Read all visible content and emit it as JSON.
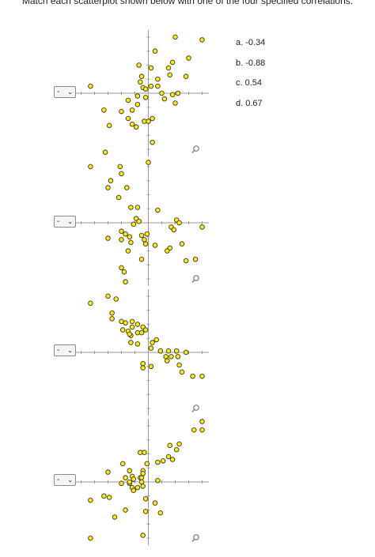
{
  "instruction": "Match each scatterplot shown below with one of the four specified correlations.",
  "selects": [
    {
      "value": "-"
    },
    {
      "value": "-"
    },
    {
      "value": "-"
    },
    {
      "value": "-"
    }
  ],
  "options": [
    "a. -0.34",
    "b. -0.88",
    "c. 0.54",
    "d. 0.67"
  ],
  "icons": {
    "dropdown": "chevron-down-icon",
    "zoom": "magnifier-icon"
  },
  "colors": {
    "point_fill": "#ffee00",
    "point_stroke": "#333333",
    "axis": "#999999"
  },
  "chart_data": [
    {
      "type": "scatter",
      "title": "",
      "xlim": [
        -5.5,
        4.5
      ],
      "ylim": [
        -4.5,
        4.5
      ],
      "grid": false,
      "points": [
        [
          2,
          4
        ],
        [
          4,
          3.8
        ],
        [
          0.5,
          3
        ],
        [
          3,
          2.5
        ],
        [
          1.8,
          2.2
        ],
        [
          -0.7,
          2
        ],
        [
          0.2,
          1.8
        ],
        [
          1.5,
          1.8
        ],
        [
          -0.5,
          1.2
        ],
        [
          -0.6,
          0.8
        ],
        [
          1.6,
          1.3
        ],
        [
          0.7,
          1
        ],
        [
          2.8,
          1.2
        ],
        [
          -0.4,
          0.4
        ],
        [
          -0.2,
          0.3
        ],
        [
          0.2,
          0.5
        ],
        [
          0.7,
          0.5
        ],
        [
          -4.3,
          0.5
        ],
        [
          2.2,
          0
        ],
        [
          1.8,
          -0.1
        ],
        [
          1,
          0
        ],
        [
          1.2,
          -0.4
        ],
        [
          -0.8,
          -0.2
        ],
        [
          -0.2,
          -0.3
        ],
        [
          2,
          -0.7
        ],
        [
          -1.5,
          -0.5
        ],
        [
          -0.8,
          -0.8
        ],
        [
          -3.3,
          -1.2
        ],
        [
          -1.2,
          -1.2
        ],
        [
          -2,
          -1.3
        ],
        [
          -1.5,
          -1.8
        ],
        [
          -0.3,
          -2
        ],
        [
          0,
          -2
        ],
        [
          0.3,
          -1.8
        ],
        [
          -2.9,
          -2.3
        ],
        [
          -1.2,
          -2.2
        ],
        [
          -0.9,
          -2.4
        ],
        [
          0.3,
          -3.5
        ],
        [
          -3.2,
          -4.2
        ]
      ]
    },
    {
      "type": "scatter",
      "title": "",
      "xlim": [
        -5.5,
        4.5
      ],
      "ylim": [
        -4.5,
        4.5
      ],
      "grid": false,
      "points": [
        [
          -4.3,
          4
        ],
        [
          -2.1,
          4
        ],
        [
          -2,
          3.5
        ],
        [
          -2.8,
          3
        ],
        [
          -3,
          2.5
        ],
        [
          -1.6,
          2.5
        ],
        [
          0,
          4.3
        ],
        [
          -2.2,
          1.8
        ],
        [
          -1.3,
          1.1
        ],
        [
          -0.8,
          1.1
        ],
        [
          0.7,
          0.9
        ],
        [
          -0.9,
          0.3
        ],
        [
          -0.7,
          0.1
        ],
        [
          -1.1,
          -0.1
        ],
        [
          2.1,
          0.2
        ],
        [
          2.3,
          0
        ],
        [
          1.7,
          -0.3
        ],
        [
          1.9,
          -0.5
        ],
        [
          4,
          -0.3
        ],
        [
          -2,
          -0.6
        ],
        [
          -1.7,
          -0.8
        ],
        [
          -1.4,
          -1
        ],
        [
          -0.5,
          -0.9
        ],
        [
          -0.1,
          -0.8
        ],
        [
          -0.3,
          -1.2
        ],
        [
          -0.2,
          -1.5
        ],
        [
          -3,
          -1.1
        ],
        [
          -2,
          -1.2
        ],
        [
          -1.3,
          -1.4
        ],
        [
          0.5,
          -1.6
        ],
        [
          1.6,
          -1.8
        ],
        [
          2.5,
          -1.5
        ],
        [
          -1.5,
          -2
        ],
        [
          1.4,
          -2
        ],
        [
          2.8,
          -2.7
        ],
        [
          3.5,
          -2.6
        ],
        [
          -0.5,
          -2.6
        ],
        [
          -2,
          -3.2
        ],
        [
          -1.8,
          -3.5
        ],
        [
          -1.7,
          -4.2
        ]
      ]
    },
    {
      "type": "scatter",
      "title": "",
      "xlim": [
        -5.5,
        4.5
      ],
      "ylim": [
        -4.5,
        4.5
      ],
      "grid": false,
      "points": [
        [
          -4.3,
          3.5
        ],
        [
          -3,
          4
        ],
        [
          -2.4,
          3.8
        ],
        [
          -2.7,
          2.8
        ],
        [
          -2.7,
          2.4
        ],
        [
          -2,
          2.2
        ],
        [
          -1.7,
          2.1
        ],
        [
          -1.2,
          2.2
        ],
        [
          -0.8,
          2
        ],
        [
          -1.2,
          1.8
        ],
        [
          -1.5,
          1.5
        ],
        [
          -1.9,
          1.6
        ],
        [
          -0.4,
          1.8
        ],
        [
          -1.3,
          1.2
        ],
        [
          -0.8,
          1.4
        ],
        [
          -1.4,
          1.3
        ],
        [
          -0.2,
          1.6
        ],
        [
          -0.5,
          1.4
        ],
        [
          0.3,
          0.7
        ],
        [
          0.6,
          0.9
        ],
        [
          -0.8,
          0.6
        ],
        [
          0.2,
          0.3
        ],
        [
          -1.3,
          0.7
        ],
        [
          0.9,
          0.1
        ],
        [
          1.5,
          0.1
        ],
        [
          2.1,
          0.1
        ],
        [
          2.8,
          0
        ],
        [
          1.3,
          -0.3
        ],
        [
          1.7,
          -0.3
        ],
        [
          2.2,
          -0.3
        ],
        [
          1.4,
          -0.6
        ],
        [
          2.3,
          -0.9
        ],
        [
          -0.4,
          -0.8
        ],
        [
          -0.4,
          -1.1
        ],
        [
          0.2,
          -1
        ],
        [
          2.5,
          -1.4
        ],
        [
          3.3,
          -1.7
        ],
        [
          4,
          -1.7
        ]
      ]
    },
    {
      "type": "scatter",
      "title": "",
      "xlim": [
        -5.5,
        4.5
      ],
      "ylim": [
        -4.5,
        4.5
      ],
      "grid": false,
      "points": [
        [
          4,
          4.3
        ],
        [
          3.4,
          3.7
        ],
        [
          4,
          3.7
        ],
        [
          2.3,
          2.7
        ],
        [
          1.6,
          2.6
        ],
        [
          2.1,
          2.3
        ],
        [
          -0.6,
          2.1
        ],
        [
          -0.3,
          2.1
        ],
        [
          0.7,
          1.4
        ],
        [
          1.1,
          1.5
        ],
        [
          1.5,
          1.8
        ],
        [
          1.8,
          1.6
        ],
        [
          -1.9,
          1.3
        ],
        [
          -0.1,
          1.3
        ],
        [
          -3,
          0.7
        ],
        [
          -1.4,
          0.8
        ],
        [
          -0.4,
          0.8
        ],
        [
          -1.7,
          0.3
        ],
        [
          -1.2,
          0.4
        ],
        [
          -0.6,
          0.3
        ],
        [
          -0.4,
          0.6
        ],
        [
          -1.1,
          0.2
        ],
        [
          -1.4,
          -0.1
        ],
        [
          -0.5,
          0.3
        ],
        [
          -1.4,
          0
        ],
        [
          -0.5,
          0
        ],
        [
          -0.4,
          -0.3
        ],
        [
          0.7,
          0.1
        ],
        [
          -2,
          -0.1
        ],
        [
          -0.8,
          -0.4
        ],
        [
          -1.2,
          -0.4
        ],
        [
          -1.1,
          -0.6
        ],
        [
          -3.3,
          -1
        ],
        [
          -2.9,
          -1.1
        ],
        [
          -4.3,
          -1.3
        ],
        [
          -0.2,
          -1.2
        ],
        [
          0.5,
          -1.5
        ],
        [
          -1.7,
          -2
        ],
        [
          -0.2,
          -2.1
        ],
        [
          0.9,
          -2.2
        ],
        [
          -2.5,
          -2.5
        ],
        [
          -4.3,
          -4
        ],
        [
          -0.4,
          -3.8
        ]
      ]
    }
  ]
}
